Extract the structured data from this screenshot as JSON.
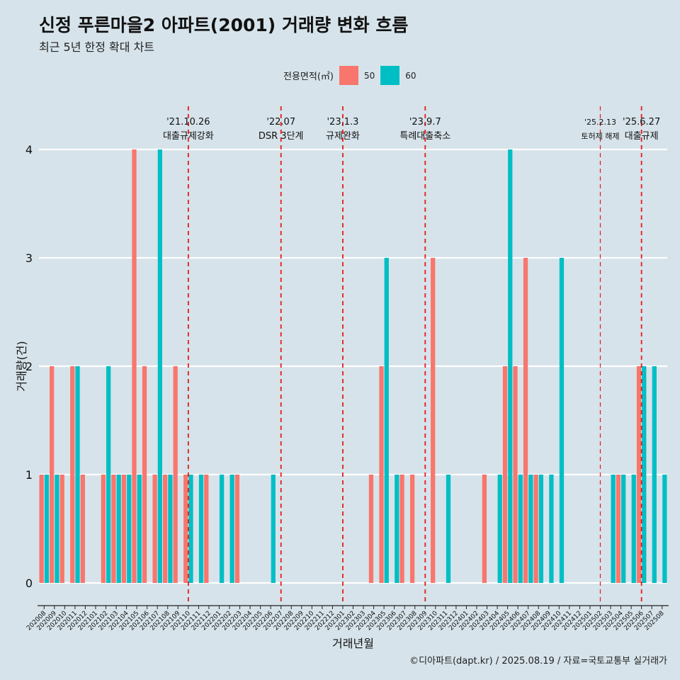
{
  "title": "신정 푸른마을2 아파트(2001) 거래량 변화 흐름",
  "subtitle": "최근 5년 한정 확대 차트",
  "caption": "©디아파트(dapt.kr) / 2025.08.19 / 자료=국토교통부 실거래가",
  "legend": {
    "title": "전용면적(㎡)",
    "items": [
      {
        "label": "50",
        "color": "#f8766d"
      },
      {
        "label": "60",
        "color": "#00bfc4"
      }
    ]
  },
  "chart_data": {
    "type": "bar",
    "title": "신정 푸른마을2 아파트(2001) 거래량 변화 흐름",
    "xlabel": "거래년월",
    "ylabel": "거래량(건)",
    "ylim": [
      0,
      4
    ],
    "yticks": [
      0,
      1,
      2,
      3,
      4
    ],
    "categories": [
      "202008",
      "202009",
      "202010",
      "202011",
      "202012",
      "202101",
      "202102",
      "202103",
      "202104",
      "202105",
      "202106",
      "202107",
      "202108",
      "202109",
      "202110",
      "202111",
      "202112",
      "202201",
      "202202",
      "202203",
      "202204",
      "202205",
      "202206",
      "202207",
      "202208",
      "202209",
      "202210",
      "202211",
      "202212",
      "202301",
      "202302",
      "202303",
      "202304",
      "202305",
      "202306",
      "202307",
      "202308",
      "202309",
      "202310",
      "202311",
      "202312",
      "202401",
      "202402",
      "202403",
      "202404",
      "202405",
      "202406",
      "202407",
      "202408",
      "202409",
      "202410",
      "202411",
      "202412",
      "202501",
      "202502",
      "202503",
      "202504",
      "202505",
      "202506",
      "202507",
      "202508"
    ],
    "series": [
      {
        "name": "50",
        "color": "#f8766d",
        "values": [
          1,
          2,
          1,
          2,
          1,
          0,
          1,
          1,
          1,
          4,
          2,
          1,
          1,
          2,
          1,
          0,
          1,
          0,
          0,
          1,
          0,
          0,
          0,
          0,
          0,
          0,
          0,
          0,
          0,
          0,
          0,
          0,
          1,
          2,
          0,
          1,
          1,
          0,
          3,
          0,
          0,
          0,
          0,
          1,
          0,
          2,
          2,
          3,
          1,
          0,
          0,
          0,
          0,
          0,
          0,
          0,
          1,
          0,
          2,
          0,
          0
        ]
      },
      {
        "name": "60",
        "color": "#00bfc4",
        "values": [
          1,
          1,
          0,
          2,
          0,
          0,
          2,
          1,
          1,
          1,
          0,
          4,
          1,
          0,
          1,
          1,
          0,
          1,
          1,
          0,
          0,
          0,
          1,
          0,
          0,
          0,
          0,
          0,
          0,
          0,
          0,
          0,
          0,
          3,
          1,
          0,
          0,
          0,
          0,
          1,
          0,
          0,
          0,
          0,
          1,
          4,
          1,
          1,
          1,
          1,
          3,
          0,
          0,
          0,
          0,
          1,
          1,
          1,
          2,
          2,
          1
        ]
      }
    ],
    "annotations": [
      {
        "date": "'21.10.26",
        "text": "대출규제강화",
        "position": 14.5
      },
      {
        "date": "'22.07",
        "text": "DSR 3단계",
        "position": 23.5
      },
      {
        "date": "'23.1.3",
        "text": "규제완화",
        "position": 29.5
      },
      {
        "date": "'23.9.7",
        "text": "특례대출축소",
        "position": 37.5
      },
      {
        "date": "'25.2.13",
        "text": "토허제 해제",
        "position": 54.5,
        "small": true
      },
      {
        "date": "'25.6.27",
        "text": "대출규제",
        "position": 58.5
      }
    ]
  }
}
